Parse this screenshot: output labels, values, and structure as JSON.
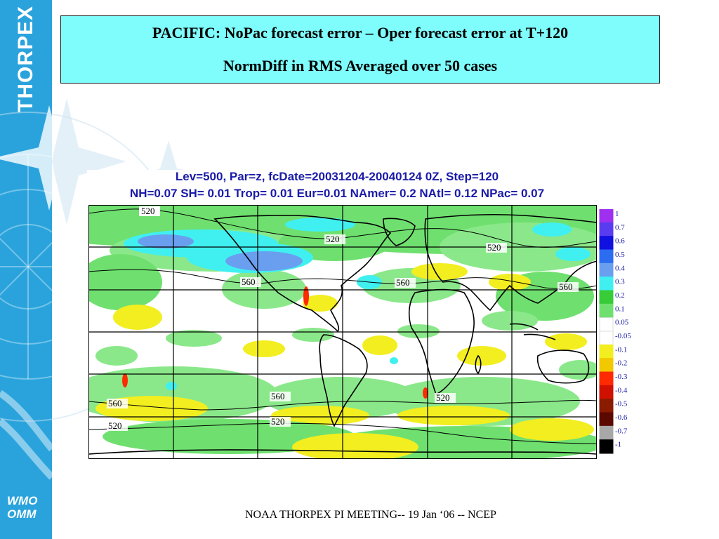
{
  "slide": {
    "title_line1": "PACIFIC: NoPac forecast error – Oper forecast error at T+120",
    "title_line2": "NormDiff in RMS Averaged over 50 cases",
    "footer": "NOAA THORPEX PI MEETING-- 19 Jan ‘06 -- NCEP"
  },
  "sidebar": {
    "brand": "THORPEX",
    "org_line1": "WMO",
    "org_line2": "OMM",
    "color": "#2aa3dc"
  },
  "figure": {
    "header_line1": "Lev=500, Par=z, fcDate=20031204-20040124 0Z, Step=120",
    "header_line2": "NH=0.07 SH= 0.01 Trop= 0.01 Eur=0.01 NAmer= 0.2 NAtl= 0.12 NPac= 0.07",
    "contour_labels": [
      "520",
      "520",
      "520",
      "560",
      "560",
      "560",
      "560",
      "560",
      "520",
      "520",
      "520"
    ],
    "colorbar": {
      "labels": [
        "1",
        "0.7",
        "0.6",
        "0.5",
        "0.4",
        "0.3",
        "0.2",
        "0.1",
        "0.05",
        "-0.05",
        "-0.1",
        "-0.2",
        "-0.3",
        "-0.4",
        "-0.5",
        "-0.6",
        "-0.7",
        "-1"
      ],
      "colors": [
        "#a030f0",
        "#5a3cf0",
        "#1010e0",
        "#2b6cf0",
        "#6a9ff0",
        "#40f0f0",
        "#38cc38",
        "#6fe06f",
        "#ffffff",
        "#ffffff",
        "#f2ee20",
        "#f2c800",
        "#ff2a00",
        "#d01000",
        "#8a1a00",
        "#5a0800",
        "#a8a8a8",
        "#000000"
      ]
    }
  }
}
